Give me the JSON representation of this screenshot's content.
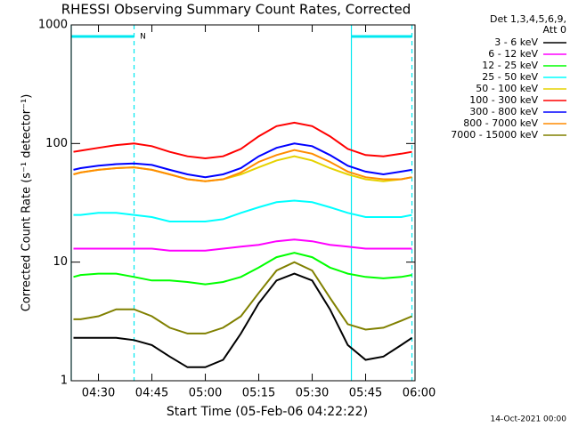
{
  "chart_data": {
    "type": "line",
    "title": "RHESSI Observing Summary Count Rates, Corrected",
    "x_label": "Start Time (05-Feb-06 04:22:22)",
    "y_label": "Corrected Count Rate (s⁻¹ detector⁻¹)",
    "log_y": true,
    "xlim": [
      "04:22:22",
      "05:58:52"
    ],
    "xticks": [
      "04:30",
      "04:45",
      "05:00",
      "05:15",
      "05:30",
      "05:45",
      "06:00"
    ],
    "ylim": [
      1,
      1000
    ],
    "yticks": [
      1,
      10,
      100,
      1000
    ],
    "legend_title": [
      "Det 1,3,4,5,6,9,",
      "Att 0"
    ],
    "legend_position": "right",
    "footer": "14-Oct-2021 00:00",
    "night_intervals": [
      {
        "start": "04:22:22",
        "end": "04:40",
        "label": "N"
      },
      {
        "start": "05:41",
        "end": "05:58"
      }
    ],
    "marker_color": "#00e8f0",
    "x": [
      "04:23",
      "04:25",
      "04:30",
      "04:35",
      "04:40",
      "04:45",
      "04:50",
      "04:55",
      "05:00",
      "05:05",
      "05:10",
      "05:15",
      "05:20",
      "05:25",
      "05:30",
      "05:35",
      "05:40",
      "05:45",
      "05:50",
      "05:55",
      "05:58"
    ],
    "series": [
      {
        "name": "3 - 6 keV",
        "color": "#000000",
        "values": [
          2.3,
          2.3,
          2.3,
          2.3,
          2.2,
          2,
          1.6,
          1.3,
          1.3,
          1.5,
          2.5,
          4.5,
          7,
          8,
          7,
          4,
          2,
          1.5,
          1.6,
          2,
          2.3
        ]
      },
      {
        "name": "6 - 12 keV",
        "color": "#ff00ff",
        "values": [
          13,
          13,
          13,
          13,
          13,
          13,
          12.5,
          12.5,
          12.5,
          13,
          13.5,
          14,
          15,
          15.5,
          15,
          14,
          13.5,
          13,
          13,
          13,
          13
        ]
      },
      {
        "name": "12 - 25 keV",
        "color": "#00ff00",
        "values": [
          7.5,
          7.8,
          8,
          8,
          7.5,
          7,
          7,
          6.8,
          6.5,
          6.8,
          7.5,
          9,
          11,
          12,
          11,
          9,
          8,
          7.5,
          7.3,
          7.5,
          7.8
        ]
      },
      {
        "name": "25 - 50 keV",
        "color": "#00ffff",
        "values": [
          25,
          25,
          26,
          26,
          25,
          24,
          22,
          22,
          22,
          23,
          26,
          29,
          32,
          33,
          32,
          29,
          26,
          24,
          24,
          24,
          25
        ]
      },
      {
        "name": "50 - 100 keV",
        "color": "#e6d200",
        "values": [
          55,
          57,
          60,
          62,
          63,
          60,
          55,
          50,
          48,
          50,
          55,
          63,
          72,
          78,
          72,
          62,
          55,
          50,
          48,
          50,
          52
        ]
      },
      {
        "name": "100 - 300 keV",
        "color": "#ff0000",
        "values": [
          85,
          87,
          92,
          97,
          100,
          95,
          85,
          78,
          75,
          78,
          90,
          115,
          140,
          150,
          140,
          115,
          90,
          80,
          78,
          82,
          85
        ]
      },
      {
        "name": "300 - 800 keV",
        "color": "#0000ff",
        "values": [
          60,
          62,
          65,
          67,
          68,
          66,
          60,
          55,
          52,
          55,
          62,
          78,
          92,
          100,
          95,
          80,
          65,
          58,
          55,
          58,
          60
        ]
      },
      {
        "name": "800 - 7000 keV",
        "color": "#ff8c00",
        "values": [
          55,
          57,
          60,
          62,
          63,
          60,
          55,
          50,
          48,
          50,
          57,
          70,
          80,
          88,
          82,
          70,
          58,
          52,
          50,
          50,
          52
        ]
      },
      {
        "name": "7000 - 15000 keV",
        "color": "#808000",
        "values": [
          3.3,
          3.3,
          3.5,
          4,
          4,
          3.5,
          2.8,
          2.5,
          2.5,
          2.8,
          3.5,
          5.5,
          8.5,
          10,
          8.5,
          5,
          3,
          2.7,
          2.8,
          3.2,
          3.5
        ]
      }
    ]
  }
}
